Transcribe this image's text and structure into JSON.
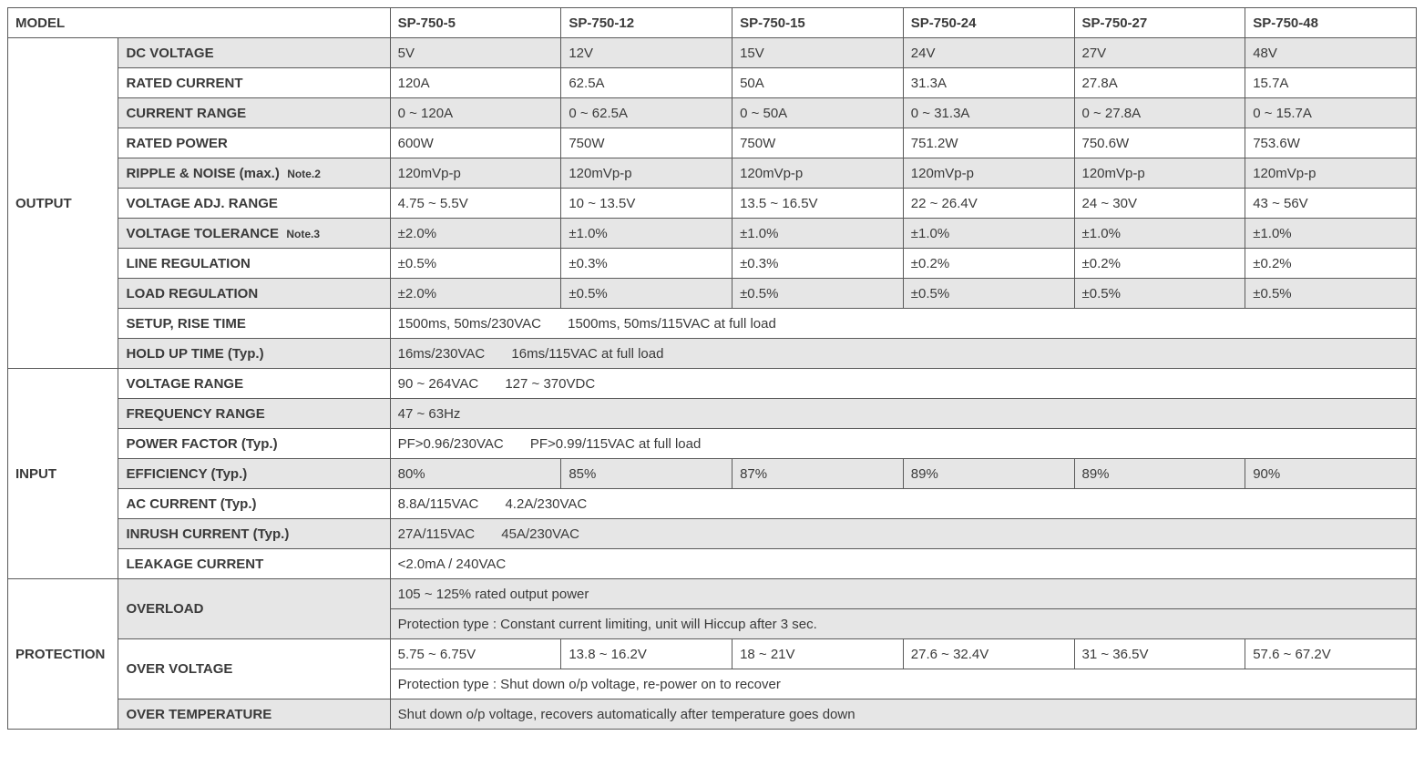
{
  "header": {
    "model_label": "MODEL",
    "models": [
      "SP-750-5",
      "SP-750-12",
      "SP-750-15",
      "SP-750-24",
      "SP-750-27",
      "SP-750-48"
    ]
  },
  "groups": {
    "output": "OUTPUT",
    "input": "INPUT",
    "protection": "PROTECTION"
  },
  "output": {
    "dc_voltage": {
      "label": "DC VOLTAGE",
      "v": [
        "5V",
        "12V",
        "15V",
        "24V",
        "27V",
        "48V"
      ]
    },
    "rated_current": {
      "label": "RATED CURRENT",
      "v": [
        "120A",
        "62.5A",
        "50A",
        "31.3A",
        "27.8A",
        "15.7A"
      ]
    },
    "current_range": {
      "label": "CURRENT RANGE",
      "v": [
        "0 ~ 120A",
        "0 ~ 62.5A",
        "0 ~ 50A",
        "0 ~ 31.3A",
        "0 ~ 27.8A",
        "0 ~ 15.7A"
      ]
    },
    "rated_power": {
      "label": "RATED POWER",
      "v": [
        "600W",
        "750W",
        "750W",
        "751.2W",
        "750.6W",
        "753.6W"
      ]
    },
    "ripple_noise": {
      "label": "RIPPLE & NOISE (max.)",
      "note": "Note.2",
      "v": [
        "120mVp-p",
        "120mVp-p",
        "120mVp-p",
        "120mVp-p",
        "120mVp-p",
        "120mVp-p"
      ]
    },
    "voltage_adj": {
      "label": "VOLTAGE ADJ. RANGE",
      "v": [
        "4.75 ~ 5.5V",
        "10 ~ 13.5V",
        "13.5 ~ 16.5V",
        "22 ~ 26.4V",
        "24 ~ 30V",
        "43 ~ 56V"
      ]
    },
    "voltage_tol": {
      "label": "VOLTAGE TOLERANCE",
      "note": "Note.3",
      "v": [
        "±2.0%",
        "±1.0%",
        "±1.0%",
        "±1.0%",
        "±1.0%",
        "±1.0%"
      ]
    },
    "line_reg": {
      "label": "LINE REGULATION",
      "v": [
        "±0.5%",
        "±0.3%",
        "±0.3%",
        "±0.2%",
        "±0.2%",
        "±0.2%"
      ]
    },
    "load_reg": {
      "label": "LOAD REGULATION",
      "v": [
        "±2.0%",
        "±0.5%",
        "±0.5%",
        "±0.5%",
        "±0.5%",
        "±0.5%"
      ]
    },
    "setup_rise": {
      "label": "SETUP, RISE TIME",
      "text": "1500ms, 50ms/230VAC       1500ms, 50ms/115VAC at full load"
    },
    "holdup": {
      "label": "HOLD UP TIME (Typ.)",
      "text": "16ms/230VAC       16ms/115VAC at full load"
    }
  },
  "input": {
    "voltage_range": {
      "label": "VOLTAGE RANGE",
      "text": "90 ~ 264VAC       127 ~ 370VDC"
    },
    "freq_range": {
      "label": "FREQUENCY RANGE",
      "text": "47 ~ 63Hz"
    },
    "power_factor": {
      "label": "POWER FACTOR (Typ.)",
      "text": "PF>0.96/230VAC       PF>0.99/115VAC at full load"
    },
    "efficiency": {
      "label": "EFFICIENCY (Typ.)",
      "v": [
        "80%",
        "85%",
        "87%",
        "89%",
        "89%",
        "90%"
      ]
    },
    "ac_current": {
      "label": "AC CURRENT (Typ.)",
      "text": "8.8A/115VAC       4.2A/230VAC"
    },
    "inrush": {
      "label": "INRUSH CURRENT (Typ.)",
      "text": "27A/115VAC       45A/230VAC"
    },
    "leakage": {
      "label": "LEAKAGE CURRENT",
      "text": "<2.0mA / 240VAC"
    }
  },
  "protection": {
    "overload": {
      "label": "OVERLOAD",
      "line1": "105 ~ 125% rated output power",
      "line2": "Protection type : Constant current limiting, unit will Hiccup after 3 sec."
    },
    "over_voltage": {
      "label": "OVER VOLTAGE",
      "v": [
        "5.75 ~ 6.75V",
        "13.8 ~ 16.2V",
        "18 ~ 21V",
        "27.6 ~ 32.4V",
        "31 ~ 36.5V",
        "57.6 ~ 67.2V"
      ],
      "line2": "Protection type : Shut down o/p voltage, re-power on to recover"
    },
    "over_temp": {
      "label": "OVER TEMPERATURE",
      "text": "Shut down o/p voltage, recovers automatically after temperature goes down"
    }
  }
}
